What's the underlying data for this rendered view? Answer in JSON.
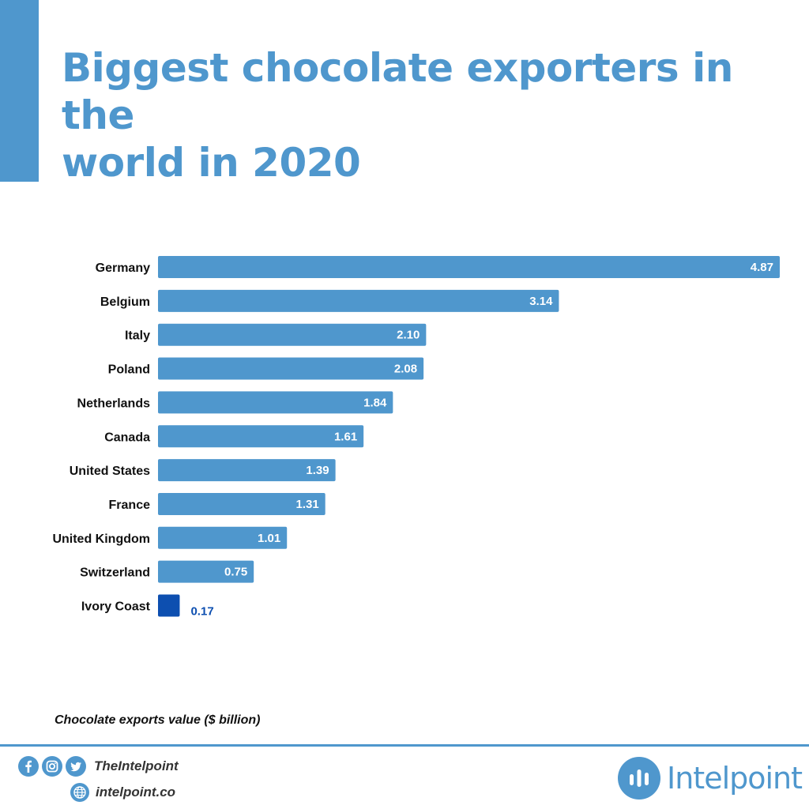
{
  "title": {
    "line1": "Biggest chocolate exporters in the",
    "line2": "world in 2020"
  },
  "chart_data": {
    "type": "bar",
    "orientation": "horizontal",
    "categories": [
      "Germany",
      "Belgium",
      "Italy",
      "Poland",
      "Netherlands",
      "Canada",
      "United States",
      "France",
      "United Kingdom",
      "Switzerland",
      "Ivory Coast"
    ],
    "values": [
      4.87,
      3.14,
      2.1,
      2.08,
      1.84,
      1.61,
      1.39,
      1.31,
      1.01,
      0.75,
      0.17
    ],
    "value_labels": [
      "4.87",
      "3.14",
      "2.10",
      "2.08",
      "1.84",
      "1.61",
      "1.39",
      "1.31",
      "1.01",
      "0.75",
      "0.17"
    ],
    "highlight_index": 10,
    "xlim": [
      0,
      4.87
    ],
    "xlabel": "Chocolate exports value ($ billion)",
    "grid": false,
    "colors": {
      "bar": "#4f97cd",
      "highlight": "#0d4fb0",
      "label_inside": "#ffffff",
      "label_outside": "#0d4fb0"
    }
  },
  "footer": {
    "social_handle": "TheIntelpoint",
    "website": "intelpoint.co",
    "brand": "Intelpoint",
    "icons": [
      "facebook-icon",
      "instagram-icon",
      "twitter-icon",
      "globe-icon"
    ]
  },
  "colors": {
    "accent": "#4f97cd"
  }
}
